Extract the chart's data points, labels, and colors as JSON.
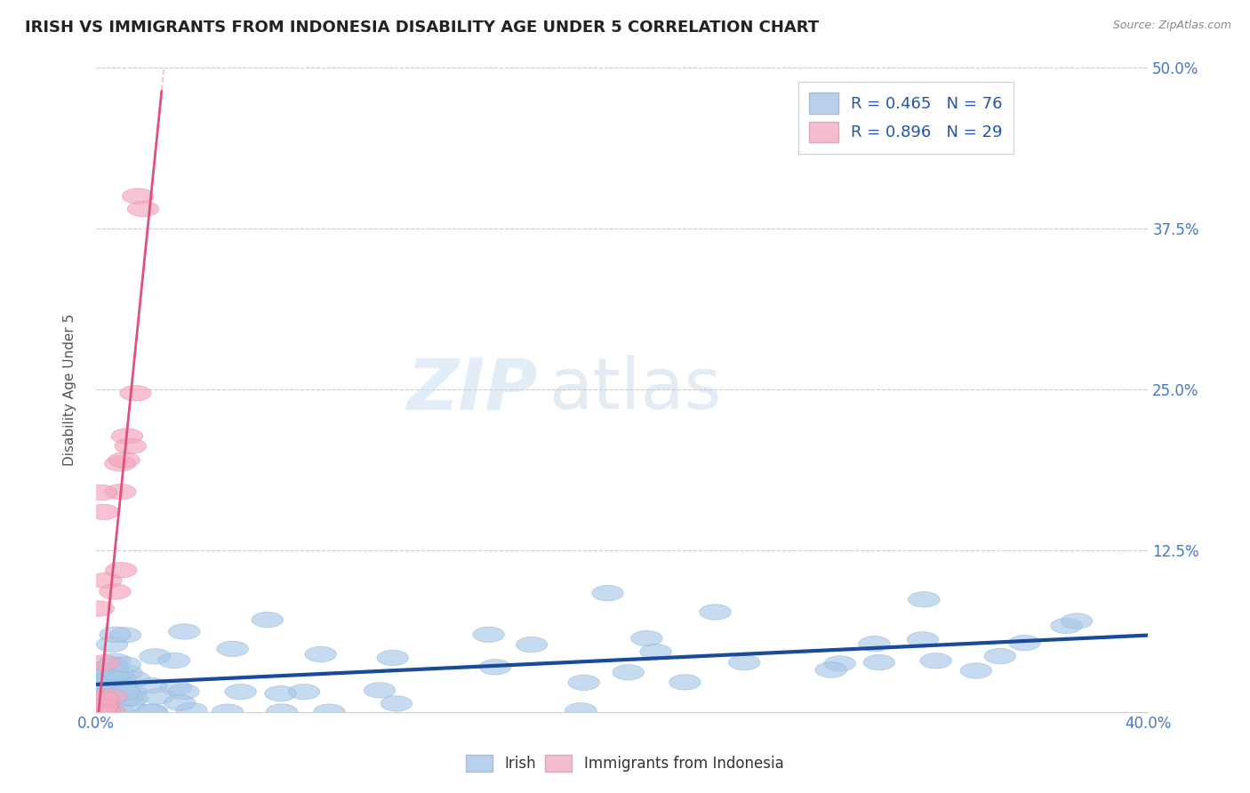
{
  "title": "IRISH VS IMMIGRANTS FROM INDONESIA DISABILITY AGE UNDER 5 CORRELATION CHART",
  "source_text": "Source: ZipAtlas.com",
  "ylabel": "Disability Age Under 5",
  "xlim": [
    0.0,
    0.4
  ],
  "ylim": [
    0.0,
    0.5
  ],
  "xticks": [
    0.0,
    0.4
  ],
  "xtick_labels": [
    "0.0%",
    "40.0%"
  ],
  "yticks": [
    0.0,
    0.125,
    0.25,
    0.375,
    0.5
  ],
  "ytick_labels": [
    "",
    "12.5%",
    "25.0%",
    "37.5%",
    "50.0%"
  ],
  "watermark_zip": "ZIP",
  "watermark_atlas": "atlas",
  "irish_R": 0.465,
  "irish_N": 76,
  "indonesia_R": 0.896,
  "indonesia_N": 29,
  "blue_scatter_color": "#a8c8e8",
  "blue_scatter_edge": "#8ab4d8",
  "blue_line_color": "#1a4a9a",
  "pink_scatter_color": "#f4a8c0",
  "pink_scatter_edge": "#e890aa",
  "pink_line_color": "#e0507a",
  "pink_dash_color": "#e090aa",
  "background_color": "#ffffff",
  "grid_color": "#cccccc",
  "title_color": "#222222",
  "title_fontsize": 13,
  "axis_label_color": "#555555",
  "tick_label_color": "#4477cc",
  "legend_text_color": "#2255aa",
  "source_color": "#888888"
}
